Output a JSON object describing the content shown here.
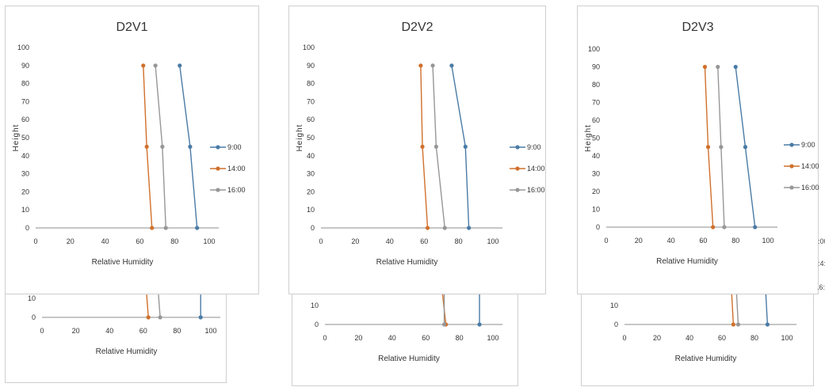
{
  "chart_data": [
    {
      "type": "line",
      "title": "D2V1",
      "xlabel": "Relative Humidity",
      "ylabel": "Height",
      "xlim": [
        0,
        100
      ],
      "ylim": [
        0,
        100
      ],
      "xticks": [
        0,
        20,
        40,
        60,
        80,
        100
      ],
      "yticks": [
        0,
        10,
        20,
        30,
        40,
        50,
        60,
        70,
        80,
        90,
        100
      ],
      "legend_position": "right",
      "series": [
        {
          "name": "9:00",
          "color": "#4a7ba6",
          "points": [
            [
              93,
              0
            ],
            [
              89,
              45
            ],
            [
              83,
              90
            ]
          ]
        },
        {
          "name": "14:00",
          "color": "#d0702c",
          "points": [
            [
              67,
              0
            ],
            [
              64,
              45
            ],
            [
              62,
              90
            ]
          ]
        },
        {
          "name": "16:00",
          "color": "#979797",
          "points": [
            [
              75,
              0
            ],
            [
              73,
              45
            ],
            [
              69,
              90
            ]
          ]
        }
      ]
    },
    {
      "type": "line",
      "title": "D2V2",
      "xlabel": "Relative Humidity",
      "ylabel": "Height",
      "xlim": [
        0,
        100
      ],
      "ylim": [
        0,
        100
      ],
      "xticks": [
        0,
        20,
        40,
        60,
        80,
        100
      ],
      "yticks": [
        0,
        10,
        20,
        30,
        40,
        50,
        60,
        70,
        80,
        90,
        100
      ],
      "legend_position": "right",
      "series": [
        {
          "name": "9:00",
          "color": "#4a7ba6",
          "points": [
            [
              86,
              0
            ],
            [
              84,
              45
            ],
            [
              76,
              90
            ]
          ]
        },
        {
          "name": "14:00",
          "color": "#d0702c",
          "points": [
            [
              62,
              0
            ],
            [
              59,
              45
            ],
            [
              58,
              90
            ]
          ]
        },
        {
          "name": "16:00",
          "color": "#979797",
          "points": [
            [
              72,
              0
            ],
            [
              67,
              45
            ],
            [
              65,
              90
            ]
          ]
        }
      ]
    },
    {
      "type": "line",
      "title": "D2V3",
      "xlabel": "Relative Humidity",
      "ylabel": "Height",
      "xlim": [
        0,
        100
      ],
      "ylim": [
        0,
        100
      ],
      "xticks": [
        0,
        20,
        40,
        60,
        80,
        100
      ],
      "yticks": [
        0,
        10,
        20,
        30,
        40,
        50,
        60,
        70,
        80,
        90,
        100
      ],
      "legend_position": "right",
      "series": [
        {
          "name": "9:00",
          "color": "#4a7ba6",
          "points": [
            [
              92,
              0
            ],
            [
              86,
              45
            ],
            [
              80,
              90
            ]
          ]
        },
        {
          "name": "14:00",
          "color": "#d0702c",
          "points": [
            [
              66,
              0
            ],
            [
              63,
              45
            ],
            [
              61,
              90
            ]
          ]
        },
        {
          "name": "16:00",
          "color": "#979797",
          "points": [
            [
              73,
              0
            ],
            [
              71,
              45
            ],
            [
              69,
              90
            ]
          ]
        }
      ]
    },
    {
      "type": "line",
      "title": "",
      "xlabel": "Relative Humidity",
      "ylabel": "",
      "xlim": [
        0,
        100
      ],
      "ylim": [
        0,
        10
      ],
      "xticks": [
        0,
        20,
        40,
        60,
        80,
        100
      ],
      "yticks": [
        0,
        10
      ],
      "series": [
        {
          "name": "",
          "color": "#4a7ba6",
          "points": [
            [
              94,
              0
            ],
            [
              94,
              12
            ]
          ]
        },
        {
          "name": "",
          "color": "#d0702c",
          "points": [
            [
              63,
              0
            ],
            [
              62,
              12
            ]
          ]
        },
        {
          "name": "",
          "color": "#979797",
          "points": [
            [
              70,
              0
            ],
            [
              69,
              12
            ]
          ]
        }
      ]
    },
    {
      "type": "line",
      "title": "",
      "xlabel": "Relative Humidity",
      "ylabel": "",
      "xlim": [
        0,
        100
      ],
      "ylim": [
        0,
        10
      ],
      "xticks": [
        0,
        20,
        40,
        60,
        80,
        100
      ],
      "yticks": [
        0,
        10
      ],
      "series": [
        {
          "name": "",
          "color": "#4a7ba6",
          "points": [
            [
              92,
              0
            ],
            [
              92,
              16
            ]
          ]
        },
        {
          "name": "",
          "color": "#d0702c",
          "points": [
            [
              72,
              0
            ],
            [
              70,
              16
            ]
          ]
        },
        {
          "name": "",
          "color": "#979797",
          "points": [
            [
              71,
              0
            ],
            [
              71,
              16
            ]
          ]
        }
      ]
    },
    {
      "type": "line",
      "title": "",
      "xlabel": "Relative Humidity",
      "ylabel": "",
      "xlim": [
        0,
        100
      ],
      "ylim": [
        0,
        10
      ],
      "xticks": [
        0,
        20,
        40,
        60,
        80,
        100
      ],
      "yticks": [
        0,
        10
      ],
      "series": [
        {
          "name": "",
          "color": "#4a7ba6",
          "points": [
            [
              88,
              0
            ],
            [
              87,
              16
            ]
          ]
        },
        {
          "name": "",
          "color": "#d0702c",
          "points": [
            [
              67,
              0
            ],
            [
              66,
              16
            ]
          ]
        },
        {
          "name": "",
          "color": "#979797",
          "points": [
            [
              70,
              0
            ],
            [
              69,
              16
            ]
          ]
        }
      ]
    }
  ],
  "stray_labels": [
    ":00",
    ":4:0",
    ".6:0"
  ]
}
